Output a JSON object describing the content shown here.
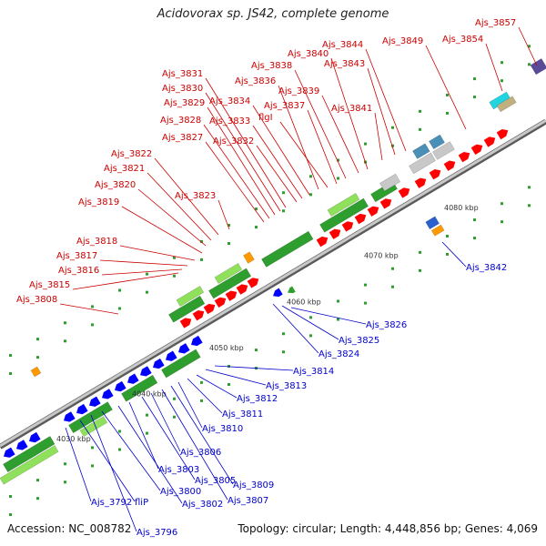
{
  "title": "Acidovorax sp. JS42, complete genome",
  "footer": {
    "accession": "Accession: NC_008782",
    "summary": "Topology: circular; Length: 4,448,856 bp; Genes: 4,069"
  },
  "colors": {
    "forward_label": "#cc0000",
    "reverse_label": "#0000cc",
    "forward_arrow": "#ff0000",
    "reverse_arrow": "#0000ff",
    "cds_green": "#2e9e2e",
    "cds_light_green": "#8fe05a",
    "rna_orange": "#ff9900",
    "backbone": "#8a8a8a"
  },
  "ticks": [
    "4030 kbp",
    "4040 kbp",
    "4050 kbp",
    "4060 kbp",
    "4070 kbp",
    "4080 kbp"
  ],
  "forward_labels": [
    "Ajs_3808",
    "Ajs_3815",
    "Ajs_3816",
    "Ajs_3817",
    "Ajs_3818",
    "Ajs_3819",
    "Ajs_3820",
    "Ajs_3821",
    "Ajs_3822",
    "Ajs_3823",
    "Ajs_3827",
    "Ajs_3828",
    "Ajs_3829",
    "Ajs_3830",
    "Ajs_3831",
    "Ajs_3832",
    "Ajs_3833",
    "Ajs_3834",
    "Ajs_3836",
    "flgI",
    "Ajs_3837",
    "Ajs_3838",
    "Ajs_3839",
    "Ajs_3840",
    "Ajs_3841",
    "Ajs_3843",
    "Ajs_3844",
    "Ajs_3849",
    "Ajs_3854",
    "Ajs_3857"
  ],
  "reverse_labels": [
    "Ajs_3792",
    "fliP",
    "Ajs_3796",
    "Ajs_3800",
    "Ajs_3802",
    "Ajs_3803",
    "Ajs_3805",
    "Ajs_3806",
    "Ajs_3807",
    "Ajs_3809",
    "Ajs_3810",
    "Ajs_3811",
    "Ajs_3812",
    "Ajs_3813",
    "Ajs_3814",
    "Ajs_3824",
    "Ajs_3825",
    "Ajs_3826",
    "Ajs_3842"
  ]
}
